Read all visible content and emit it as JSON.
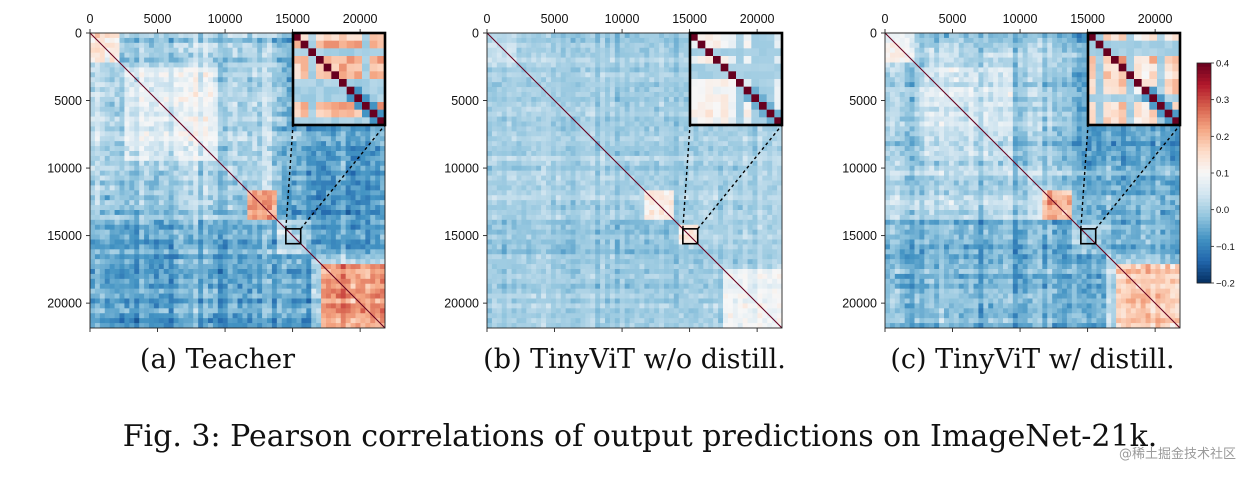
{
  "figure_caption": "Fig. 3: Pearson correlations of output predictions on ImageNet-21k.",
  "watermark": "@稀土掘金技术社区",
  "colorbar": {
    "colors": [
      "#053061",
      "#2166ac",
      "#4393c3",
      "#92c5de",
      "#d1e5f0",
      "#f7f7f7",
      "#fddbc7",
      "#f4a582",
      "#d6604d",
      "#b2182b",
      "#67001f"
    ],
    "range": [
      -0.2,
      0.4
    ],
    "ticks": [
      {
        "value": 0.4,
        "label": "0.4"
      },
      {
        "value": 0.3,
        "label": "0.3"
      },
      {
        "value": 0.2,
        "label": "0.2"
      },
      {
        "value": 0.1,
        "label": "0.1"
      },
      {
        "value": 0.0,
        "label": "0.0"
      },
      {
        "value": -0.1,
        "label": "−0.1"
      },
      {
        "value": -0.2,
        "label": "−0.2"
      }
    ]
  },
  "chart_data": [
    {
      "type": "heatmap",
      "subcaption": "(a) Teacher",
      "x_range": [
        0,
        21841
      ],
      "y_range": [
        0,
        21841
      ],
      "y_inverted": true,
      "x_ticks": [
        {
          "value": 0,
          "label": "0"
        },
        {
          "value": 5000,
          "label": "5000"
        },
        {
          "value": 10000,
          "label": "10000"
        },
        {
          "value": 15000,
          "label": "15000"
        },
        {
          "value": 20000,
          "label": "20000"
        }
      ],
      "y_ticks": [
        {
          "value": 0,
          "label": "0"
        },
        {
          "value": 5000,
          "label": "5000"
        },
        {
          "value": 10000,
          "label": "10000"
        },
        {
          "value": 15000,
          "label": "15000"
        },
        {
          "value": 20000,
          "label": "20000"
        }
      ],
      "value_range": [
        -0.2,
        0.4
      ],
      "zoom_region": {
        "x": [
          14500,
          15600
        ],
        "y": [
          14500,
          15600
        ]
      },
      "texture_seed": 7,
      "noise_level": 1.0,
      "blocks": [
        {
          "x0": 0,
          "x1": 2200,
          "y0": 0,
          "y1": 2200,
          "value": 0.14
        },
        {
          "x0": 2500,
          "x1": 9500,
          "y0": 2500,
          "y1": 9500,
          "value": 0.06
        },
        {
          "x0": 11800,
          "x1": 13800,
          "y0": 11800,
          "y1": 13800,
          "value": 0.22
        },
        {
          "x0": 14000,
          "x1": 16500,
          "y0": 0,
          "y1": 14000,
          "value": -0.05
        },
        {
          "x0": 0,
          "x1": 14000,
          "y0": 14000,
          "y1": 16500,
          "value": -0.06
        },
        {
          "x0": 16500,
          "x1": 21841,
          "y0": 0,
          "y1": 16500,
          "value": -0.07
        },
        {
          "x0": 0,
          "x1": 16500,
          "y0": 16500,
          "y1": 21841,
          "value": -0.06
        },
        {
          "x0": 17200,
          "x1": 21841,
          "y0": 17200,
          "y1": 21841,
          "value": 0.23
        },
        {
          "x0": 7800,
          "x1": 9000,
          "y0": 0,
          "y1": 21841,
          "value": 0.03
        }
      ]
    },
    {
      "type": "heatmap",
      "subcaption": "(b) TinyViT w/o distill.",
      "x_range": [
        0,
        21841
      ],
      "y_range": [
        0,
        21841
      ],
      "y_inverted": true,
      "x_ticks": [
        {
          "value": 0,
          "label": "0"
        },
        {
          "value": 5000,
          "label": "5000"
        },
        {
          "value": 10000,
          "label": "10000"
        },
        {
          "value": 15000,
          "label": "15000"
        },
        {
          "value": 20000,
          "label": "20000"
        }
      ],
      "y_ticks": [
        {
          "value": 0,
          "label": "0"
        },
        {
          "value": 5000,
          "label": "5000"
        },
        {
          "value": 10000,
          "label": "10000"
        },
        {
          "value": 15000,
          "label": "15000"
        },
        {
          "value": 20000,
          "label": "20000"
        }
      ],
      "value_range": [
        -0.2,
        0.4
      ],
      "zoom_region": {
        "x": [
          14500,
          15600
        ],
        "y": [
          14500,
          15600
        ]
      },
      "texture_seed": 19,
      "noise_level": 0.6,
      "blocks": [
        {
          "x0": 0,
          "x1": 2200,
          "y0": 0,
          "y1": 2200,
          "value": 0.03
        },
        {
          "x0": 11800,
          "x1": 13800,
          "y0": 11800,
          "y1": 13800,
          "value": 0.12
        },
        {
          "x0": 14300,
          "x1": 15600,
          "y0": 14300,
          "y1": 15600,
          "value": 0.12
        },
        {
          "x0": 17500,
          "x1": 21841,
          "y0": 17500,
          "y1": 21841,
          "value": 0.09
        },
        {
          "x0": 0,
          "x1": 14000,
          "y0": 14000,
          "y1": 16500,
          "value": -0.02
        }
      ]
    },
    {
      "type": "heatmap",
      "subcaption": "(c) TinyViT w/ distill.",
      "x_range": [
        0,
        21841
      ],
      "y_range": [
        0,
        21841
      ],
      "y_inverted": true,
      "x_ticks": [
        {
          "value": 0,
          "label": "0"
        },
        {
          "value": 5000,
          "label": "5000"
        },
        {
          "value": 10000,
          "label": "10000"
        },
        {
          "value": 15000,
          "label": "15000"
        },
        {
          "value": 20000,
          "label": "20000"
        }
      ],
      "y_ticks": [
        {
          "value": 0,
          "label": "0"
        },
        {
          "value": 5000,
          "label": "5000"
        },
        {
          "value": 10000,
          "label": "10000"
        },
        {
          "value": 15000,
          "label": "15000"
        },
        {
          "value": 20000,
          "label": "20000"
        }
      ],
      "value_range": [
        -0.2,
        0.4
      ],
      "zoom_region": {
        "x": [
          14500,
          15600
        ],
        "y": [
          14500,
          15600
        ]
      },
      "texture_seed": 31,
      "noise_level": 0.9,
      "blocks": [
        {
          "x0": 0,
          "x1": 2200,
          "y0": 0,
          "y1": 2200,
          "value": 0.1
        },
        {
          "x0": 2500,
          "x1": 9500,
          "y0": 2500,
          "y1": 9500,
          "value": 0.04
        },
        {
          "x0": 11800,
          "x1": 13800,
          "y0": 11800,
          "y1": 13800,
          "value": 0.2
        },
        {
          "x0": 14000,
          "x1": 16500,
          "y0": 0,
          "y1": 14000,
          "value": -0.04
        },
        {
          "x0": 0,
          "x1": 14000,
          "y0": 14000,
          "y1": 16500,
          "value": -0.05
        },
        {
          "x0": 16500,
          "x1": 21841,
          "y0": 0,
          "y1": 16500,
          "value": -0.05
        },
        {
          "x0": 0,
          "x1": 16500,
          "y0": 16500,
          "y1": 21841,
          "value": -0.04
        },
        {
          "x0": 17200,
          "x1": 21841,
          "y0": 17200,
          "y1": 21841,
          "value": 0.17
        }
      ]
    }
  ]
}
